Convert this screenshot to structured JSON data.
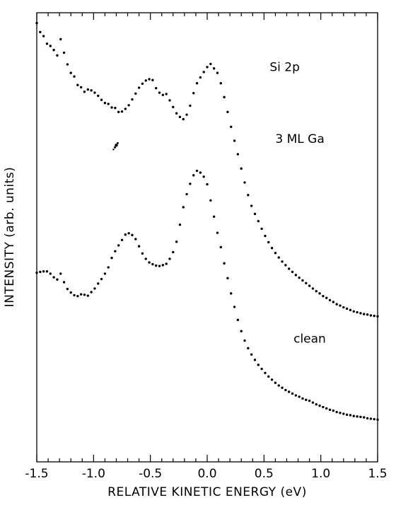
{
  "chart_data": {
    "type": "scatter",
    "title": "",
    "xlabel": "RELATIVE KINETIC ENERGY (eV)",
    "ylabel": "INTENSITY (arb. units)",
    "xlim": [
      -1.5,
      1.5
    ],
    "ylim": [
      0,
      100
    ],
    "xticks": [
      -1.5,
      -1.0,
      -0.5,
      0.0,
      0.5,
      1.0,
      1.5
    ],
    "xtick_labels": [
      "-1.5",
      "-1.0",
      "-0.5",
      "0.0",
      "0.5",
      "1.0",
      "1.5"
    ],
    "grid": false,
    "annotations": [
      {
        "text": "Si 2p",
        "x": 0.55,
        "y": 87
      },
      {
        "text": "3 ML Ga",
        "x": 0.6,
        "y": 71
      },
      {
        "text": "clean",
        "x": 0.76,
        "y": 26.5
      }
    ],
    "series": [
      {
        "x": [
          -1.5,
          -1.47,
          -1.44,
          -1.41,
          -1.38,
          -1.35,
          -1.32,
          -1.29,
          -1.26,
          -1.23,
          -1.2,
          -1.17,
          -1.14,
          -1.11,
          -1.08,
          -1.05,
          -1.02,
          -0.99,
          -0.96,
          -0.93,
          -0.9,
          -0.87,
          -0.84,
          -0.81,
          -0.78,
          -0.75,
          -0.72,
          -0.69,
          -0.66,
          -0.63,
          -0.6,
          -0.57,
          -0.54,
          -0.51,
          -0.48,
          -0.45,
          -0.42,
          -0.39,
          -0.36,
          -0.33,
          -0.3,
          -0.27,
          -0.24,
          -0.21,
          -0.18,
          -0.15,
          -0.12,
          -0.09,
          -0.06,
          -0.03,
          0.0,
          0.03,
          0.06,
          0.09,
          0.12,
          0.15,
          0.18,
          0.21,
          0.24,
          0.27,
          0.3,
          0.33,
          0.36,
          0.39,
          0.42,
          0.45,
          0.48,
          0.51,
          0.54,
          0.57,
          0.6,
          0.63,
          0.66,
          0.69,
          0.72,
          0.75,
          0.78,
          0.81,
          0.84,
          0.87,
          0.9,
          0.93,
          0.96,
          0.99,
          1.02,
          1.05,
          1.08,
          1.11,
          1.14,
          1.17,
          1.2,
          1.23,
          1.26,
          1.29,
          1.32,
          1.35,
          1.38,
          1.41,
          1.44,
          1.47,
          1.5
        ],
        "values": [
          97.7,
          95.7,
          94.8,
          93.1,
          92.6,
          91.7,
          90.5,
          94.1,
          91.1,
          88.5,
          86.6,
          85.8,
          83.9,
          83.4,
          82.4,
          82.9,
          82.7,
          82.2,
          81.5,
          80.6,
          79.9,
          79.7,
          78.9,
          78.8,
          77.9,
          78.0,
          78.6,
          79.4,
          80.7,
          82.0,
          83.3,
          84.2,
          84.9,
          85.2,
          85.0,
          83.2,
          82.2,
          81.7,
          81.9,
          80.5,
          79.0,
          77.6,
          76.8,
          76.3,
          77.3,
          79.3,
          82.1,
          84.3,
          85.6,
          86.8,
          87.9,
          88.6,
          87.6,
          86.6,
          84.3,
          81.2,
          77.9,
          74.6,
          71.5,
          68.5,
          65.3,
          62.2,
          59.4,
          57.0,
          55.2,
          53.6,
          51.9,
          50.3,
          48.9,
          47.6,
          46.5,
          45.5,
          44.6,
          43.8,
          43.0,
          42.3,
          41.6,
          41.0,
          40.4,
          39.8,
          39.2,
          38.6,
          38.0,
          37.5,
          36.9,
          36.5,
          36.0,
          35.6,
          35.1,
          34.8,
          34.4,
          34.1,
          33.8,
          33.5,
          33.3,
          33.1,
          32.9,
          32.8,
          32.6,
          32.5,
          32.4
        ]
      },
      {
        "x": [
          -1.5,
          -1.47,
          -1.44,
          -1.41,
          -1.38,
          -1.35,
          -1.32,
          -1.29,
          -1.26,
          -1.23,
          -1.2,
          -1.17,
          -1.14,
          -1.11,
          -1.08,
          -1.05,
          -1.02,
          -0.99,
          -0.96,
          -0.93,
          -0.9,
          -0.87,
          -0.84,
          -0.81,
          -0.78,
          -0.75,
          -0.72,
          -0.69,
          -0.66,
          -0.63,
          -0.6,
          -0.57,
          -0.54,
          -0.51,
          -0.48,
          -0.45,
          -0.42,
          -0.39,
          -0.36,
          -0.33,
          -0.3,
          -0.27,
          -0.24,
          -0.21,
          -0.18,
          -0.15,
          -0.12,
          -0.09,
          -0.06,
          -0.03,
          0.0,
          0.03,
          0.06,
          0.09,
          0.12,
          0.15,
          0.18,
          0.21,
          0.24,
          0.27,
          0.3,
          0.33,
          0.36,
          0.39,
          0.42,
          0.45,
          0.48,
          0.51,
          0.54,
          0.57,
          0.6,
          0.63,
          0.66,
          0.69,
          0.72,
          0.75,
          0.78,
          0.81,
          0.84,
          0.87,
          0.9,
          0.93,
          0.96,
          0.99,
          1.02,
          1.05,
          1.08,
          1.11,
          1.14,
          1.17,
          1.2,
          1.23,
          1.26,
          1.29,
          1.32,
          1.35,
          1.38,
          1.41,
          1.44,
          1.47,
          1.5
        ],
        "values": [
          42.1,
          42.3,
          42.4,
          42.4,
          41.9,
          41.1,
          40.6,
          41.9,
          40.0,
          38.5,
          37.7,
          37.1,
          36.9,
          37.3,
          37.2,
          37.0,
          37.8,
          38.6,
          39.7,
          40.7,
          41.9,
          43.3,
          45.4,
          46.9,
          48.2,
          49.4,
          50.6,
          50.9,
          50.5,
          49.6,
          48.0,
          46.4,
          45.2,
          44.4,
          44.0,
          43.7,
          43.6,
          43.8,
          44.1,
          45.2,
          46.7,
          49.0,
          52.8,
          56.7,
          59.6,
          61.9,
          63.8,
          64.8,
          64.4,
          63.5,
          61.8,
          58.2,
          54.6,
          51.0,
          47.8,
          44.2,
          40.9,
          37.5,
          34.5,
          31.6,
          29.1,
          27.0,
          25.3,
          23.9,
          22.7,
          21.6,
          20.7,
          19.8,
          19.0,
          18.3,
          17.6,
          17.0,
          16.5,
          16.0,
          15.6,
          15.2,
          14.8,
          14.5,
          14.1,
          13.8,
          13.6,
          13.2,
          12.8,
          12.5,
          12.2,
          11.9,
          11.6,
          11.4,
          11.1,
          10.9,
          10.7,
          10.5,
          10.4,
          10.2,
          10.1,
          10.0,
          9.9,
          9.7,
          9.6,
          9.5,
          9.4
        ]
      }
    ],
    "stray_marks": [
      {
        "x": -0.8,
        "y": 70.5
      }
    ]
  }
}
